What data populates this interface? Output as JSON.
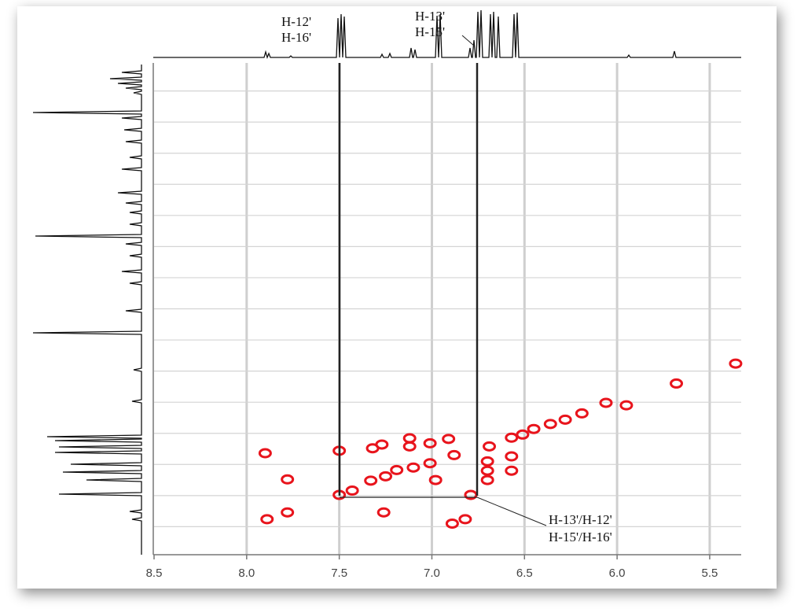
{
  "chart_data": {
    "type": "scatter",
    "annotations": [
      "H-12'",
      "H-16'",
      "H-13'",
      "H-15'",
      "H-13'/H-12'",
      "H-15'/H-16'"
    ],
    "x": [
      7.5,
      6.79,
      7.5,
      7.9,
      7.78,
      7.89,
      7.78,
      7.26,
      6.82,
      7.12,
      7.12,
      7.01,
      7.32,
      7.27,
      7.01,
      6.57,
      6.69,
      6.36,
      6.19,
      6.06,
      5.95,
      5.68,
      5.36,
      7.33,
      7.19,
      6.7,
      6.7,
      6.7,
      6.57,
      6.57,
      6.98,
      6.91,
      6.89,
      7.43,
      7.25,
      7.1,
      6.88,
      6.51,
      6.45,
      6.28
    ],
    "values": [
      7.49,
      7.49,
      6.78,
      6.82,
      7.24,
      7.88,
      7.77,
      7.77,
      7.88,
      6.58,
      6.71,
      6.66,
      6.74,
      6.68,
      6.98,
      6.57,
      6.71,
      6.35,
      6.18,
      6.01,
      6.05,
      5.7,
      5.38,
      7.26,
      7.09,
      6.95,
      7.1,
      7.25,
      6.87,
      7.1,
      7.25,
      6.59,
      7.95,
      7.42,
      7.19,
      7.05,
      6.85,
      6.52,
      6.43,
      6.28
    ],
    "color": "#e8141c",
    "xlim": [
      8.5,
      5.33
    ],
    "ylim": [
      8.45,
      0.55
    ],
    "xticks": [
      8.5,
      {
        "value": 8,
        "label": "8.0"
      },
      7.5,
      {
        "value": 7,
        "label": "7.0"
      },
      6.5,
      {
        "value": 6,
        "label": "6.0"
      },
      5.5
    ],
    "yticks": [
      1,
      1.5,
      2,
      2.5,
      3,
      3.5,
      4,
      4.5,
      5,
      5.5,
      6,
      6.5,
      7,
      7.5,
      8
    ],
    "grid": true
  }
}
